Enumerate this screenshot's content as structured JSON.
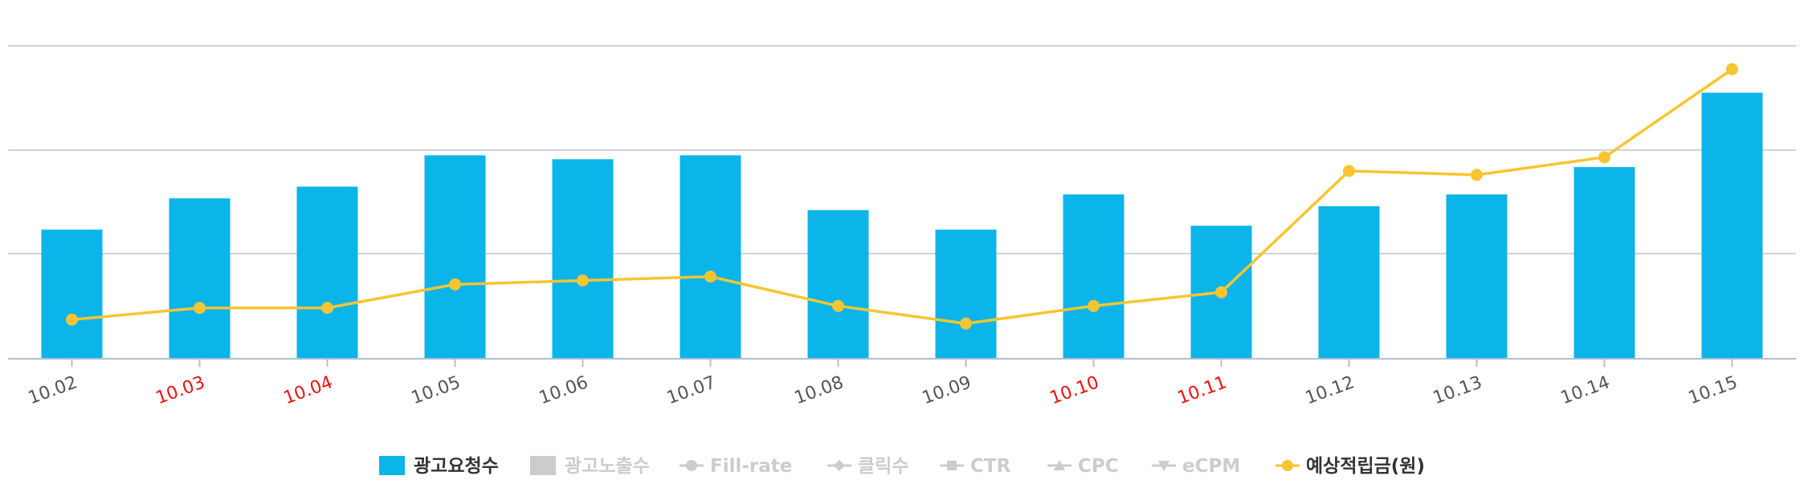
{
  "chart_data": {
    "type": "bar",
    "categories": [
      "10.02",
      "10.03",
      "10.04",
      "10.05",
      "10.06",
      "10.07",
      "10.08",
      "10.09",
      "10.10",
      "10.11",
      "10.12",
      "10.13",
      "10.14",
      "10.15"
    ],
    "highlighted_categories": [
      "10.03",
      "10.04",
      "10.10",
      "10.11"
    ],
    "colors": {
      "bar": "#0bb5e9",
      "line": "#f7c531",
      "grid": "#b8c5d2",
      "axis": "#b0bfcf",
      "tick_text": "#555555",
      "tick_text_highlight": "#ee1111",
      "legend_active": "#333333",
      "legend_inactive": "#cccccc"
    },
    "grid": true,
    "title": "",
    "xlabel": "",
    "ylabel": "",
    "series": [
      {
        "name": "광고요청수",
        "type": "bar",
        "axis": "left",
        "values": [
          33,
          41,
          44,
          52,
          51,
          52,
          38,
          33,
          42,
          34,
          39,
          42,
          49,
          68
        ],
        "ylim": [
          0,
          80
        ]
      },
      {
        "name": "예상적립금(원)",
        "type": "line",
        "axis": "right",
        "values": [
          20,
          26,
          26,
          38,
          40,
          42,
          27,
          18,
          27,
          34,
          96,
          94,
          103,
          148
        ],
        "ylim": [
          0,
          160
        ]
      }
    ],
    "legend": {
      "position": "bottom-center",
      "items": [
        {
          "label": "광고요청수",
          "marker": "bar",
          "active": true
        },
        {
          "label": "광고노출수",
          "marker": "bar",
          "active": false
        },
        {
          "label": "Fill-rate",
          "marker": "line-circle",
          "active": false
        },
        {
          "label": "클릭수",
          "marker": "line-diamond",
          "active": false
        },
        {
          "label": "CTR",
          "marker": "line-square",
          "active": false
        },
        {
          "label": "CPC",
          "marker": "line-triangle",
          "active": false
        },
        {
          "label": "eCPM",
          "marker": "line-triangle-down",
          "active": false
        },
        {
          "label": "예상적립금(원)",
          "marker": "line-circle",
          "active": true
        }
      ]
    }
  }
}
